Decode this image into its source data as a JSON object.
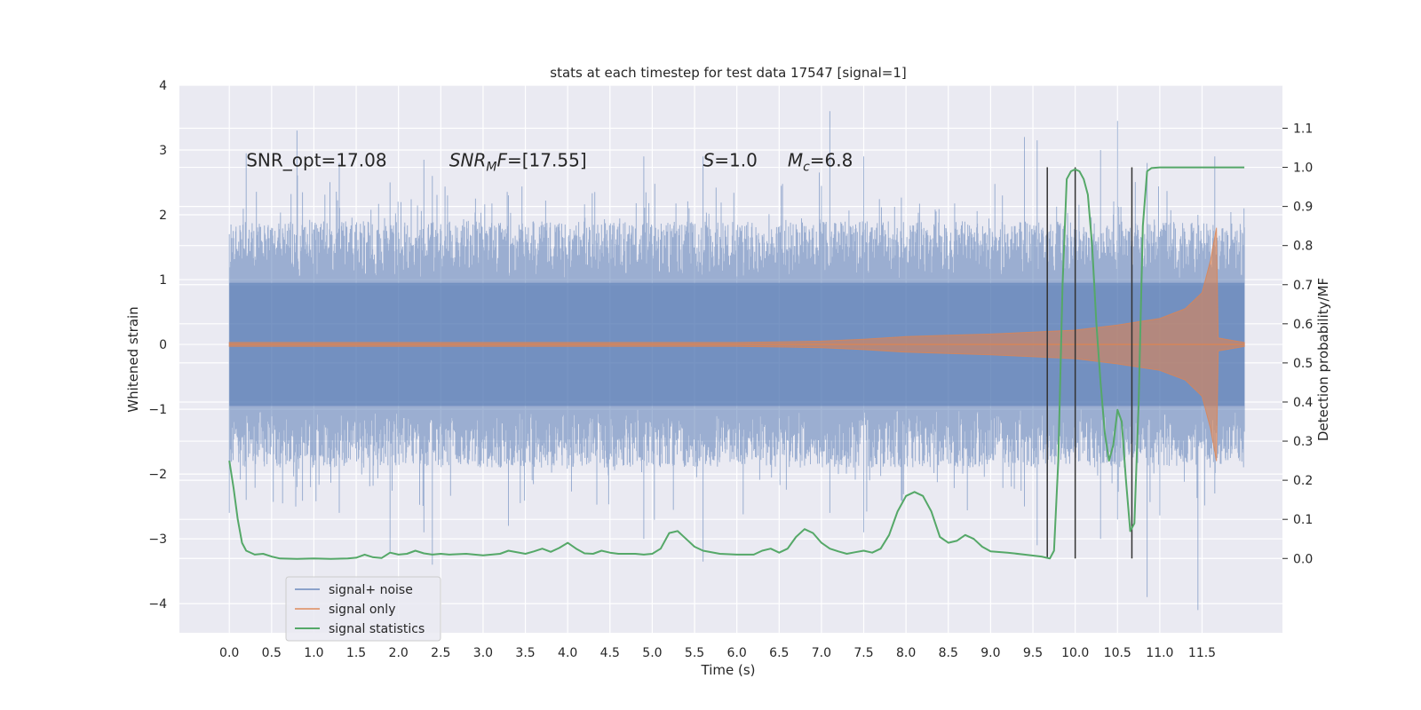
{
  "chart_data": {
    "type": "line",
    "title": "stats at each timestep for test data 17547 [signal=1]",
    "xlabel": "Time (s)",
    "ylabel": "Whitened strain",
    "y2label": "Detection probability/MF",
    "xlim": [
      -0.59,
      12.45
    ],
    "ylim": [
      -4.45,
      4.0
    ],
    "y2lim": [
      -0.19,
      1.21
    ],
    "x_ticks": [
      0.0,
      0.5,
      1.0,
      1.5,
      2.0,
      2.5,
      3.0,
      3.5,
      4.0,
      4.5,
      5.0,
      5.5,
      6.0,
      6.5,
      7.0,
      7.5,
      8.0,
      8.5,
      9.0,
      9.5,
      10.0,
      10.5,
      11.0,
      11.5
    ],
    "x_tick_labels": [
      "0.0",
      "0.5",
      "1.0",
      "1.5",
      "2.0",
      "2.5",
      "3.0",
      "3.5",
      "4.0",
      "4.5",
      "5.0",
      "5.5",
      "6.0",
      "6.5",
      "7.0",
      "7.5",
      "8.0",
      "8.5",
      "9.0",
      "9.5",
      "10.0",
      "10.5",
      "11.0",
      "11.5"
    ],
    "y_ticks": [
      -4,
      -3,
      -2,
      -1,
      0,
      1,
      2,
      3,
      4
    ],
    "y_tick_labels": [
      "−4",
      "−3",
      "−2",
      "−1",
      "0",
      "1",
      "2",
      "3",
      "4"
    ],
    "y2_ticks": [
      0.0,
      0.1,
      0.2,
      0.3,
      0.4,
      0.5,
      0.6,
      0.7,
      0.8,
      0.9,
      1.0,
      1.1
    ],
    "y2_tick_labels": [
      "0.0",
      "0.1",
      "0.2",
      "0.3",
      "0.4",
      "0.5",
      "0.6",
      "0.7",
      "0.8",
      "0.9",
      "1.0",
      "1.1"
    ],
    "grid": true,
    "legend_position": "lower-left",
    "annotations": [
      {
        "parts": [
          {
            "text": "SNR_opt=17.08",
            "italic": false
          }
        ],
        "x": 0.2,
        "y": 2.75
      },
      {
        "parts": [
          {
            "text": "SNR",
            "italic": true
          },
          {
            "text": "M",
            "italic": true,
            "sub": true
          },
          {
            "text": "F",
            "italic": true
          },
          {
            "text": "=[17.55]",
            "italic": false
          }
        ],
        "x": 2.6,
        "y": 2.75
      },
      {
        "parts": [
          {
            "text": "S",
            "italic": true
          },
          {
            "text": "=1.0",
            "italic": false
          }
        ],
        "x": 5.6,
        "y": 2.75
      },
      {
        "parts": [
          {
            "text": "M",
            "italic": true
          },
          {
            "text": "c",
            "italic": true,
            "sub": true
          },
          {
            "text": "=6.8",
            "italic": false
          }
        ],
        "x": 6.6,
        "y": 2.75
      }
    ],
    "series": [
      {
        "name": "signal+ noise",
        "color": "#4c72b0",
        "axis": "left",
        "kind": "noise",
        "x_start": 0.0,
        "x_end": 12.0,
        "spikes": [
          [
            0.0,
            1.7,
            -2.6
          ],
          [
            0.2,
            2.95,
            -2.4
          ],
          [
            0.8,
            3.3,
            -2.2
          ],
          [
            1.3,
            2.8,
            -2.6
          ],
          [
            1.9,
            2.5,
            -3.2
          ],
          [
            2.3,
            2.85,
            -2.9
          ],
          [
            2.4,
            2.6,
            -3.4
          ],
          [
            3.3,
            2.3,
            -2.8
          ],
          [
            4.9,
            2.9,
            -3.0
          ],
          [
            5.6,
            2.9,
            -3.35
          ],
          [
            7.1,
            3.6,
            -2.6
          ],
          [
            7.5,
            2.9,
            -2.9
          ],
          [
            9.4,
            3.2,
            -2.5
          ],
          [
            9.55,
            3.15,
            -3.1
          ],
          [
            10.3,
            3.0,
            -3.0
          ],
          [
            10.5,
            3.45,
            -2.7
          ],
          [
            10.85,
            2.8,
            -3.9
          ],
          [
            11.45,
            2.0,
            -4.1
          ],
          [
            11.65,
            2.9,
            -2.3
          ]
        ]
      },
      {
        "name": "signal only",
        "color": "#dd8452",
        "axis": "left",
        "envelope": [
          [
            0.0,
            0.03
          ],
          [
            6.0,
            0.03
          ],
          [
            7.0,
            0.05
          ],
          [
            7.5,
            0.08
          ],
          [
            8.0,
            0.12
          ],
          [
            8.5,
            0.14
          ],
          [
            9.0,
            0.16
          ],
          [
            9.5,
            0.19
          ],
          [
            10.0,
            0.22
          ],
          [
            10.5,
            0.3
          ],
          [
            11.0,
            0.4
          ],
          [
            11.3,
            0.55
          ],
          [
            11.5,
            0.8
          ],
          [
            11.6,
            1.3
          ],
          [
            11.67,
            1.8
          ],
          [
            11.69,
            0.1
          ],
          [
            12.0,
            0.03
          ]
        ]
      },
      {
        "name": "signal statistics",
        "color": "#55a868",
        "axis": "right",
        "points": [
          [
            0.0,
            0.25
          ],
          [
            0.05,
            0.18
          ],
          [
            0.1,
            0.1
          ],
          [
            0.15,
            0.04
          ],
          [
            0.2,
            0.02
          ],
          [
            0.3,
            0.01
          ],
          [
            0.4,
            0.012
          ],
          [
            0.5,
            0.005
          ],
          [
            0.6,
            0.0
          ],
          [
            0.8,
            -0.001
          ],
          [
            1.0,
            0.0
          ],
          [
            1.2,
            -0.001
          ],
          [
            1.4,
            0.0
          ],
          [
            1.5,
            0.002
          ],
          [
            1.6,
            0.01
          ],
          [
            1.7,
            0.003
          ],
          [
            1.8,
            0.001
          ],
          [
            1.9,
            0.015
          ],
          [
            2.0,
            0.01
          ],
          [
            2.1,
            0.012
          ],
          [
            2.2,
            0.02
          ],
          [
            2.3,
            0.013
          ],
          [
            2.4,
            0.01
          ],
          [
            2.5,
            0.012
          ],
          [
            2.6,
            0.01
          ],
          [
            2.8,
            0.012
          ],
          [
            3.0,
            0.008
          ],
          [
            3.2,
            0.012
          ],
          [
            3.3,
            0.02
          ],
          [
            3.5,
            0.012
          ],
          [
            3.6,
            0.018
          ],
          [
            3.7,
            0.025
          ],
          [
            3.8,
            0.017
          ],
          [
            3.9,
            0.027
          ],
          [
            4.0,
            0.04
          ],
          [
            4.1,
            0.025
          ],
          [
            4.2,
            0.013
          ],
          [
            4.3,
            0.012
          ],
          [
            4.4,
            0.02
          ],
          [
            4.5,
            0.015
          ],
          [
            4.6,
            0.012
          ],
          [
            4.8,
            0.012
          ],
          [
            4.9,
            0.01
          ],
          [
            5.0,
            0.012
          ],
          [
            5.1,
            0.025
          ],
          [
            5.2,
            0.065
          ],
          [
            5.3,
            0.07
          ],
          [
            5.4,
            0.05
          ],
          [
            5.5,
            0.03
          ],
          [
            5.6,
            0.02
          ],
          [
            5.8,
            0.012
          ],
          [
            6.0,
            0.01
          ],
          [
            6.2,
            0.01
          ],
          [
            6.3,
            0.02
          ],
          [
            6.4,
            0.025
          ],
          [
            6.5,
            0.015
          ],
          [
            6.6,
            0.025
          ],
          [
            6.7,
            0.055
          ],
          [
            6.8,
            0.075
          ],
          [
            6.9,
            0.065
          ],
          [
            7.0,
            0.04
          ],
          [
            7.1,
            0.025
          ],
          [
            7.2,
            0.018
          ],
          [
            7.3,
            0.012
          ],
          [
            7.4,
            0.016
          ],
          [
            7.5,
            0.02
          ],
          [
            7.6,
            0.015
          ],
          [
            7.7,
            0.025
          ],
          [
            7.8,
            0.06
          ],
          [
            7.9,
            0.12
          ],
          [
            8.0,
            0.16
          ],
          [
            8.1,
            0.17
          ],
          [
            8.2,
            0.16
          ],
          [
            8.3,
            0.12
          ],
          [
            8.4,
            0.055
          ],
          [
            8.5,
            0.04
          ],
          [
            8.6,
            0.045
          ],
          [
            8.7,
            0.06
          ],
          [
            8.8,
            0.05
          ],
          [
            8.9,
            0.03
          ],
          [
            9.0,
            0.018
          ],
          [
            9.2,
            0.015
          ],
          [
            9.4,
            0.01
          ],
          [
            9.6,
            0.005
          ],
          [
            9.7,
            0.0
          ],
          [
            9.75,
            0.02
          ],
          [
            9.8,
            0.25
          ],
          [
            9.85,
            0.7
          ],
          [
            9.9,
            0.97
          ],
          [
            9.95,
            0.99
          ],
          [
            10.0,
            0.995
          ],
          [
            10.05,
            0.99
          ],
          [
            10.1,
            0.97
          ],
          [
            10.15,
            0.93
          ],
          [
            10.2,
            0.8
          ],
          [
            10.25,
            0.6
          ],
          [
            10.3,
            0.45
          ],
          [
            10.35,
            0.32
          ],
          [
            10.4,
            0.25
          ],
          [
            10.45,
            0.29
          ],
          [
            10.5,
            0.38
          ],
          [
            10.55,
            0.35
          ],
          [
            10.6,
            0.2
          ],
          [
            10.65,
            0.07
          ],
          [
            10.7,
            0.09
          ],
          [
            10.75,
            0.4
          ],
          [
            10.8,
            0.85
          ],
          [
            10.85,
            0.99
          ],
          [
            10.9,
            0.998
          ],
          [
            11.0,
            1.0
          ],
          [
            11.2,
            1.0
          ],
          [
            11.5,
            1.0
          ],
          [
            11.7,
            1.0
          ],
          [
            12.0,
            1.0
          ]
        ]
      }
    ],
    "vertical_lines": [
      {
        "x": 9.67,
        "color": "#333333"
      },
      {
        "x": 10.0,
        "color": "#333333"
      },
      {
        "x": 10.67,
        "color": "#333333"
      }
    ]
  }
}
